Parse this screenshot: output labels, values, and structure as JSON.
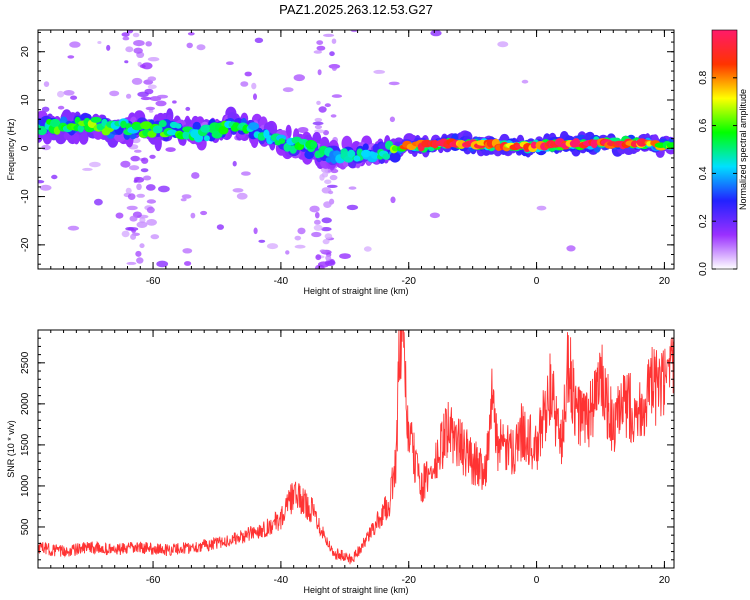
{
  "page": {
    "title": "PAZ1.2025.263.12.53.G27"
  },
  "chart_data": [
    {
      "type": "heatmap",
      "title": "PAZ1.2025.263.12.53.G27",
      "xlabel": "Height of straight line (km)",
      "ylabel": "Frequency (Hz)",
      "xlim": [
        -78,
        21.5
      ],
      "ylim": [
        -25,
        24.5
      ],
      "xticks": [
        -60,
        -40,
        -20,
        0,
        20
      ],
      "yticks": [
        -20,
        -10,
        0,
        10,
        20
      ],
      "colorbar": {
        "label": "Normalized spectral amplitude",
        "range": [
          0,
          1
        ],
        "ticks": [
          0.0,
          0.2,
          0.4,
          0.6,
          0.8
        ],
        "tick_labels": [
          "0.0",
          "0.2",
          "0.4",
          "0.6",
          "0.8"
        ],
        "colors": [
          "#ffffff",
          "#9a30ff",
          "#2222ff",
          "#00e0ff",
          "#00ff00",
          "#ffff00",
          "#ff3300",
          "#ff1a6a"
        ]
      },
      "ridge": {
        "x": [
          -76,
          -70,
          -64,
          -58,
          -52,
          -47,
          -44,
          -40,
          -36,
          -32,
          -28,
          -24,
          -20,
          -15,
          -10,
          -5,
          0,
          5,
          10,
          15,
          21
        ],
        "y": [
          4.5,
          5,
          4,
          4,
          3,
          5,
          3.5,
          1.5,
          0,
          -1.5,
          -1.5,
          -1,
          0.5,
          1,
          1,
          0.5,
          0.5,
          1,
          1,
          1,
          0.5
        ],
        "amplitude": [
          0.55,
          0.6,
          0.5,
          0.55,
          0.45,
          0.55,
          0.45,
          0.5,
          0.5,
          0.4,
          0.45,
          0.45,
          0.75,
          0.9,
          0.95,
          0.8,
          0.95,
          0.9,
          0.95,
          0.95,
          0.6
        ]
      }
    },
    {
      "type": "line",
      "xlabel": "Height of straight line (km)",
      "ylabel": "SNR (10 * v/v)",
      "xlim": [
        -78,
        21.5
      ],
      "ylim": [
        0,
        2900
      ],
      "xticks": [
        -60,
        -40,
        -20,
        0,
        20
      ],
      "yticks": [
        500,
        1000,
        1500,
        2000,
        2500
      ],
      "color": "#ff3333",
      "series": [
        {
          "name": "SNR",
          "x": [
            -78,
            -74,
            -70,
            -66,
            -62,
            -58,
            -54,
            -50,
            -46,
            -42,
            -40,
            -38,
            -35,
            -32,
            -29,
            -27,
            -25,
            -23,
            -22,
            -21.5,
            -21,
            -20,
            -18,
            -16,
            -14,
            -12,
            -10,
            -8,
            -7,
            -6,
            -4,
            -2,
            0,
            2,
            4,
            5,
            6,
            8,
            10,
            12,
            14,
            16,
            18,
            20,
            21.5
          ],
          "y": [
            250,
            200,
            250,
            220,
            250,
            220,
            250,
            300,
            380,
            500,
            600,
            900,
            700,
            200,
            100,
            300,
            550,
            800,
            1300,
            2500,
            2800,
            1600,
            1000,
            1200,
            1700,
            1500,
            1300,
            1200,
            2000,
            1500,
            1400,
            1700,
            1400,
            2200,
            1500,
            2600,
            1900,
            1800,
            2300,
            1700,
            2000,
            1900,
            2200,
            2200,
            2350
          ]
        }
      ]
    }
  ]
}
